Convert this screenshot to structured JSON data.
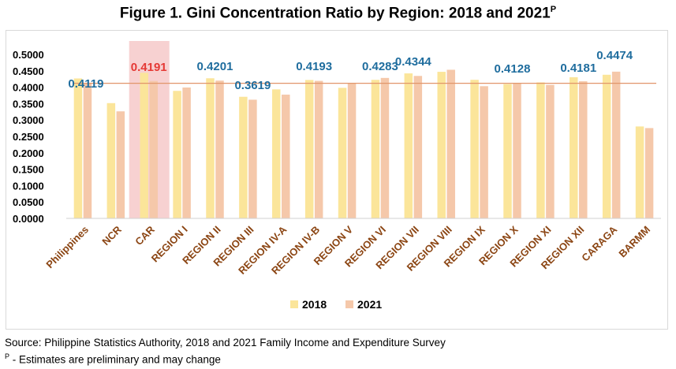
{
  "title_main": "Figure 1. Gini Concentration Ratio by Region: 2018 and 2021",
  "title_sup": "P",
  "source_text": "Source: Philippine Statistics Authority, 2018 and 2021 Family Income and Expenditure Survey",
  "note_sup": "P",
  "note_text": " - Estimates are preliminary and may change",
  "colors": {
    "s2018": "#fbe59a",
    "s2021": "#f5c8aa",
    "highlight": "#f6c9c9",
    "refline": "#e1956a",
    "label_blue": "#1f6d9e",
    "label_red": "#e53935",
    "category_text": "#8b4513"
  },
  "chart_data": {
    "type": "bar",
    "title": "Gini Concentration Ratio by Region: 2018 and 2021",
    "categories": [
      "Philippines",
      "NCR",
      "CAR",
      "REGION I",
      "REGION II",
      "REGION III",
      "REGION IV-A",
      "REGION IV-B",
      "REGION V",
      "REGION VI",
      "REGION VII",
      "REGION VIII",
      "REGION IX",
      "REGION X",
      "REGION XI",
      "REGION XII",
      "CARAGA",
      "BARMM"
    ],
    "series": [
      {
        "name": "2018",
        "values": [
          0.4267,
          0.3515,
          0.4438,
          0.3888,
          0.4272,
          0.3708,
          0.3934,
          0.422,
          0.3981,
          0.4224,
          0.4421,
          0.4469,
          0.4225,
          0.4095,
          0.4147,
          0.4305,
          0.438,
          0.2803
        ]
      },
      {
        "name": "2021",
        "values": [
          0.4119,
          0.3264,
          0.4191,
          0.3991,
          0.4201,
          0.3619,
          0.3773,
          0.4193,
          0.4133,
          0.4283,
          0.4344,
          0.4532,
          0.4031,
          0.4128,
          0.4071,
          0.4181,
          0.4474,
          0.2754
        ]
      }
    ],
    "data_labels": [
      {
        "category": "Philippines",
        "text": "0.4119"
      },
      {
        "category": "CAR",
        "text": "0.4191",
        "highlight": true
      },
      {
        "category": "REGION II",
        "text": "0.4201"
      },
      {
        "category": "REGION III",
        "text": "0.3619"
      },
      {
        "category": "REGION IV-B",
        "text": "0.4193"
      },
      {
        "category": "REGION VI",
        "text": "0.4283"
      },
      {
        "category": "REGION VII",
        "text": "0.4344"
      },
      {
        "category": "REGION X",
        "text": "0.4128"
      },
      {
        "category": "REGION XII",
        "text": "0.4181"
      },
      {
        "category": "CARAGA",
        "text": "0.4474"
      }
    ],
    "reference_line": 0.4119,
    "highlighted_category": "CAR",
    "ylim": [
      0,
      0.5
    ],
    "yticks": [
      "0.0000",
      "0.0500",
      "0.1000",
      "0.1500",
      "0.2000",
      "0.2500",
      "0.3000",
      "0.3500",
      "0.4000",
      "0.4500",
      "0.5000"
    ],
    "legend": [
      "2018",
      "2021"
    ],
    "legend_position": "bottom",
    "grid": false
  }
}
